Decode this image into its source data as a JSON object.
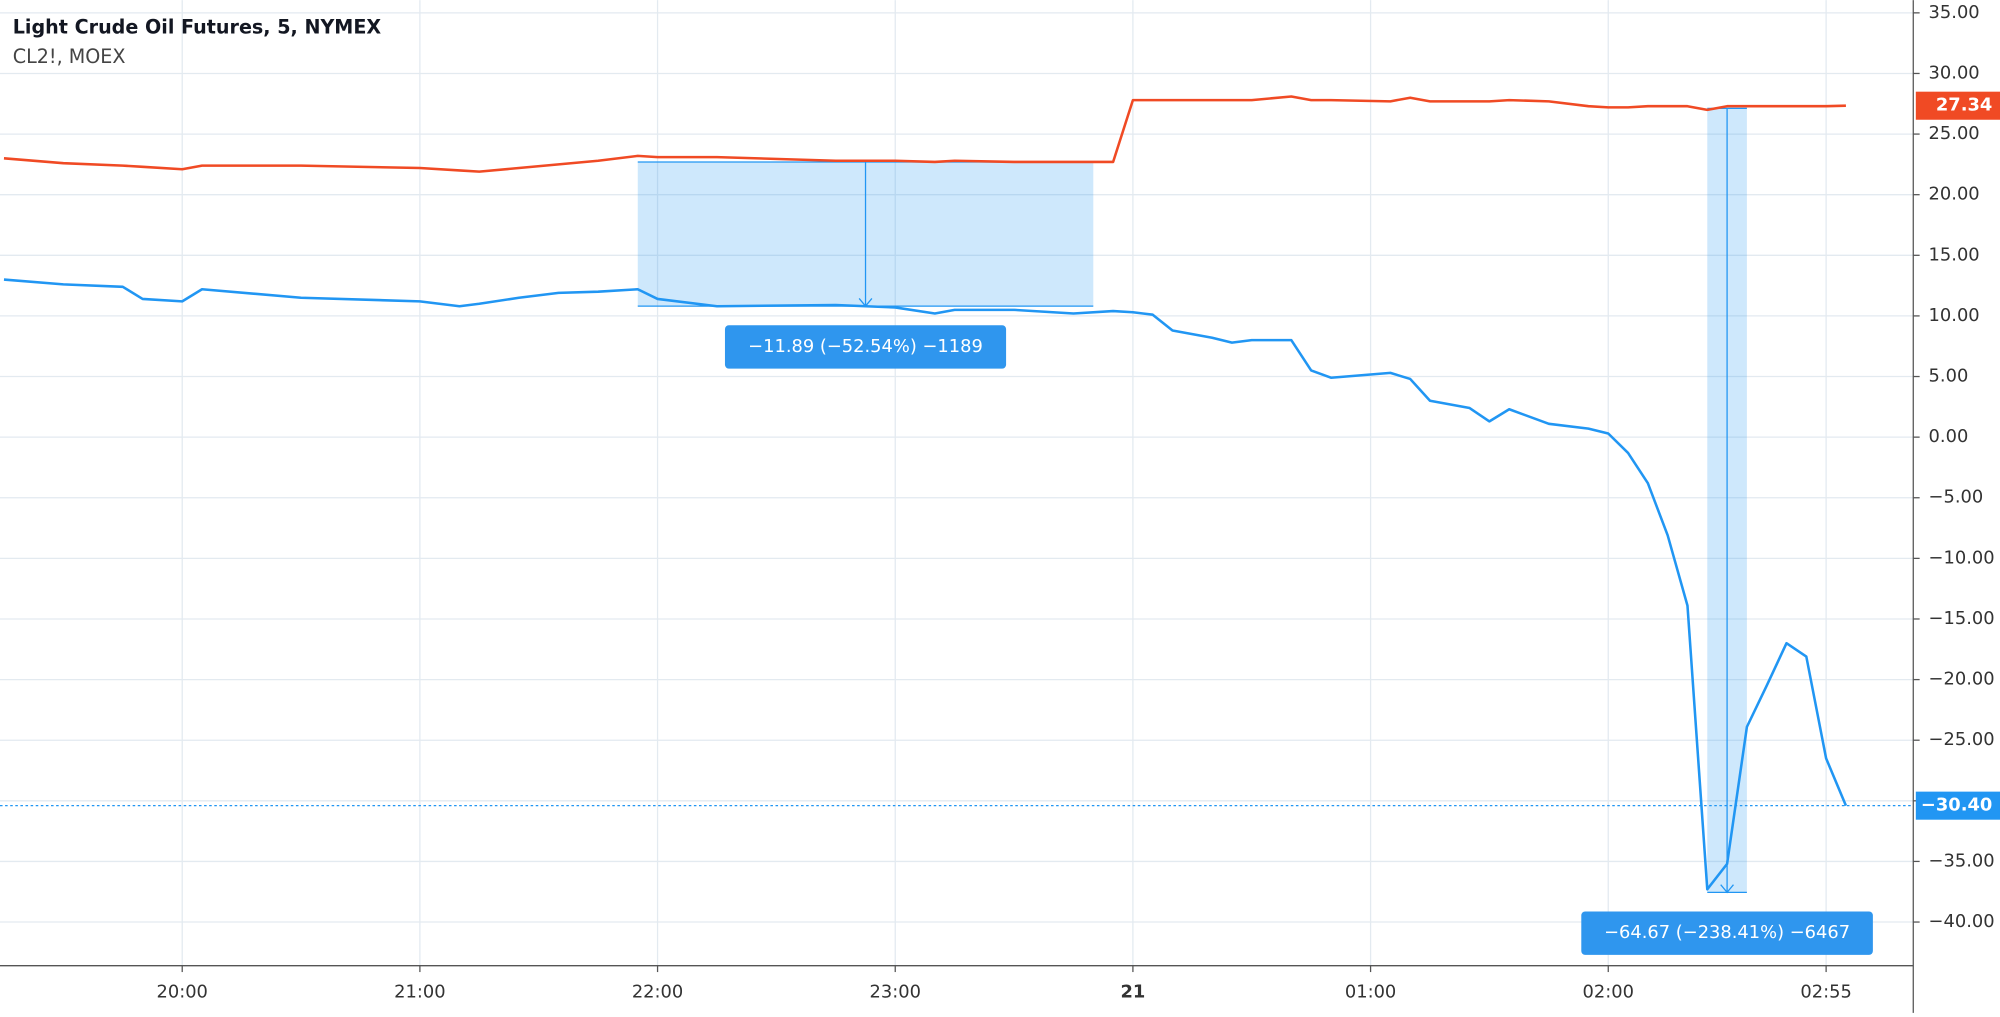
{
  "chart_data": {
    "type": "line",
    "x": [
      "19:15",
      "19:30",
      "19:45",
      "19:50",
      "20:00",
      "20:05",
      "20:30",
      "21:00",
      "21:10",
      "21:15",
      "21:25",
      "21:35",
      "21:45",
      "21:55",
      "22:00",
      "22:15",
      "22:45",
      "23:00",
      "23:10",
      "23:15",
      "23:30",
      "23:45",
      "23:55",
      "00:00",
      "00:05",
      "00:10",
      "00:20",
      "00:25",
      "00:30",
      "00:40",
      "00:45",
      "00:50",
      "01:05",
      "01:10",
      "01:15",
      "01:25",
      "01:30",
      "01:35",
      "01:45",
      "01:55",
      "02:00",
      "02:05",
      "02:10",
      "02:15",
      "02:20",
      "02:25",
      "02:30",
      "02:35",
      "02:40",
      "02:45",
      "02:50",
      "02:55",
      "03:00"
    ],
    "series": [
      {
        "name": "Light Crude Oil Futures, 5, NYMEX",
        "color": "#f04a24",
        "price_label": "27.34",
        "values": [
          23.0,
          22.6,
          22.4,
          22.3,
          22.1,
          22.4,
          22.4,
          22.2,
          22.0,
          21.9,
          22.2,
          22.5,
          22.8,
          23.2,
          23.1,
          23.1,
          22.8,
          22.8,
          22.7,
          22.8,
          22.7,
          22.7,
          22.7,
          27.8,
          27.8,
          27.8,
          27.8,
          27.8,
          27.8,
          28.1,
          27.8,
          27.8,
          27.7,
          28.0,
          27.7,
          27.7,
          27.7,
          27.8,
          27.7,
          27.3,
          27.2,
          27.2,
          27.3,
          27.3,
          27.3,
          27.0,
          27.3,
          27.3,
          27.3,
          27.3,
          27.3,
          27.3,
          27.34
        ]
      },
      {
        "name": "CL2!, MOEX",
        "color": "#2196f3",
        "price_label": "−30.40",
        "values": [
          13.0,
          12.6,
          12.4,
          11.4,
          11.2,
          12.2,
          11.5,
          11.2,
          10.8,
          11.0,
          11.5,
          11.9,
          12.0,
          12.2,
          11.4,
          10.8,
          10.9,
          10.7,
          10.2,
          10.5,
          10.5,
          10.2,
          10.4,
          10.3,
          10.1,
          8.8,
          8.2,
          7.8,
          8.0,
          8.0,
          5.5,
          4.9,
          5.3,
          4.8,
          3.0,
          2.4,
          1.3,
          2.3,
          1.1,
          0.7,
          0.3,
          -1.3,
          -3.8,
          -8.1,
          -13.9,
          -37.3,
          -35.2,
          -23.9,
          -20.5,
          -17.0,
          -18.1,
          -26.5,
          -30.4
        ]
      }
    ],
    "measures": [
      {
        "label": "−11.89 (−52.54%) −1189",
        "from": "21:55",
        "to": "23:50",
        "start": 22.7,
        "end": 10.81
      },
      {
        "label": "−64.67 (−238.41%) −6467",
        "from": "02:25",
        "to": "02:35",
        "start": 27.12,
        "end": -37.55
      }
    ],
    "xlim": [
      "19:14",
      "03:17"
    ],
    "xticks": [
      "20:00",
      "21:00",
      "22:00",
      "23:00",
      {
        "value": "00:00",
        "label": "21"
      },
      "01:00",
      "02:00",
      "02:55"
    ],
    "ylim": [
      -43.6,
      36.05
    ],
    "yticks": [
      {
        "value": 35,
        "label": "35.00"
      },
      {
        "value": 30,
        "label": "30.00"
      },
      {
        "value": 25,
        "label": "25.00"
      },
      {
        "value": 20,
        "label": "20.00"
      },
      {
        "value": 15,
        "label": "15.00"
      },
      {
        "value": 10,
        "label": "10.00"
      },
      {
        "value": 5,
        "label": "5.00"
      },
      {
        "value": 0,
        "label": "0.00"
      },
      {
        "value": -5,
        "label": "−5.00"
      },
      {
        "value": -10,
        "label": "−10.00"
      },
      {
        "value": -15,
        "label": "−15.00"
      },
      {
        "value": -20,
        "label": "−20.00"
      },
      {
        "value": -25,
        "label": "−25.00"
      },
      {
        "value": -30,
        "label": "−30.00"
      },
      {
        "value": -35,
        "label": "−35.00"
      },
      {
        "value": -40,
        "label": "−40.00"
      }
    ],
    "grid": true
  }
}
